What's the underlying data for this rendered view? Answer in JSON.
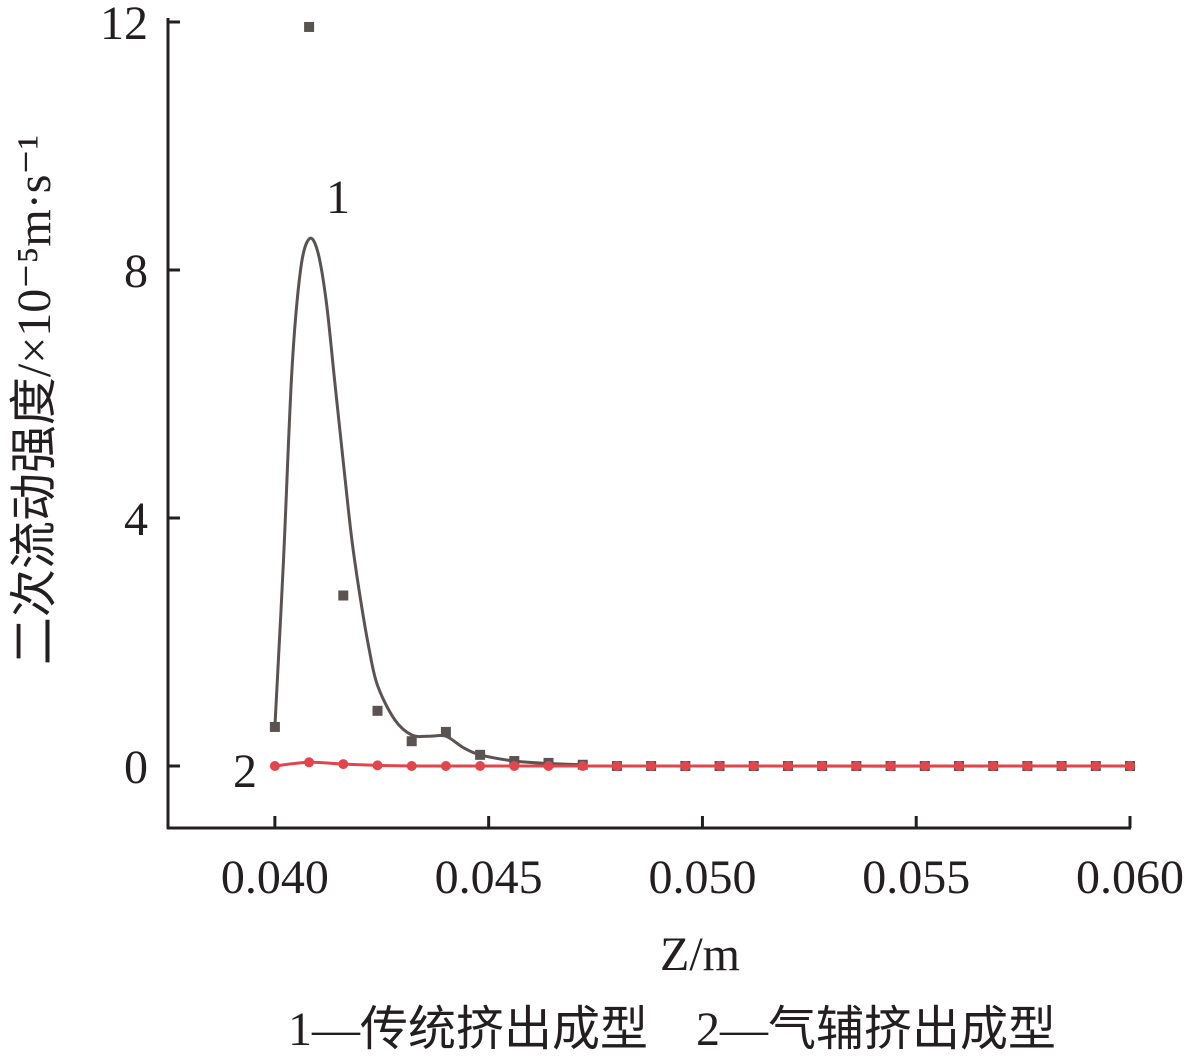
{
  "chart_data": {
    "type": "scatter-curve",
    "y_label": "二次流动强度/×10⁻⁵m·s⁻¹",
    "x_label": "Z/m",
    "caption": "1—传统挤出成型　2—气辅挤出成型",
    "xlim": [
      0.0375,
      0.06
    ],
    "ylim": [
      -1,
      12
    ],
    "xticks": [
      {
        "value": 0.04,
        "label": "0.040"
      },
      0.045,
      {
        "value": 0.05,
        "label": "0.050"
      },
      0.055,
      {
        "value": 0.06,
        "label": "0.060"
      }
    ],
    "yticks": [
      0,
      4,
      8,
      12
    ],
    "x": [
      0.04,
      0.0408,
      0.0416,
      0.0424,
      0.0432,
      0.044,
      0.0448,
      0.0456,
      0.0464,
      0.0472,
      0.048,
      0.0488,
      0.0496,
      0.0504,
      0.0512,
      0.052,
      0.0528,
      0.0536,
      0.0544,
      0.0552,
      0.056,
      0.0568,
      0.0576,
      0.0584,
      0.0592,
      0.06
    ],
    "series": [
      {
        "label": "1",
        "color": "#5b5252",
        "values": [
          0.63,
          11.92,
          2.75,
          0.89,
          0.4,
          0.55,
          0.18,
          0.08,
          0.05,
          0.02,
          0,
          0,
          0,
          0,
          0,
          0,
          0,
          0,
          0,
          0,
          0,
          0,
          0,
          0,
          0,
          0
        ],
        "curve_x": [
          0.04,
          0.0402,
          0.0404,
          0.0406,
          0.0408,
          0.041,
          0.0412,
          0.0414,
          0.0416,
          0.0418,
          0.042,
          0.0422,
          0.0424,
          0.0428,
          0.0432,
          0.0436,
          0.044,
          0.0444,
          0.0448,
          0.0456,
          0.0464,
          0.0472,
          0.048,
          0.06
        ],
        "curve_values": [
          0.63,
          3.3,
          6.4,
          8.0,
          8.5,
          8.3,
          7.5,
          6.2,
          4.9,
          3.65,
          2.7,
          1.9,
          1.3,
          0.75,
          0.5,
          0.48,
          0.48,
          0.3,
          0.18,
          0.08,
          0.04,
          0.02,
          0,
          0
        ]
      },
      {
        "label": "2",
        "color": "#e0464b",
        "values": [
          0,
          0.06,
          0.03,
          0.01,
          0,
          0,
          0,
          0,
          0,
          0,
          0,
          0,
          0,
          0,
          0,
          0,
          0,
          0,
          0,
          0,
          0,
          0,
          0,
          0,
          0,
          0
        ]
      }
    ]
  }
}
